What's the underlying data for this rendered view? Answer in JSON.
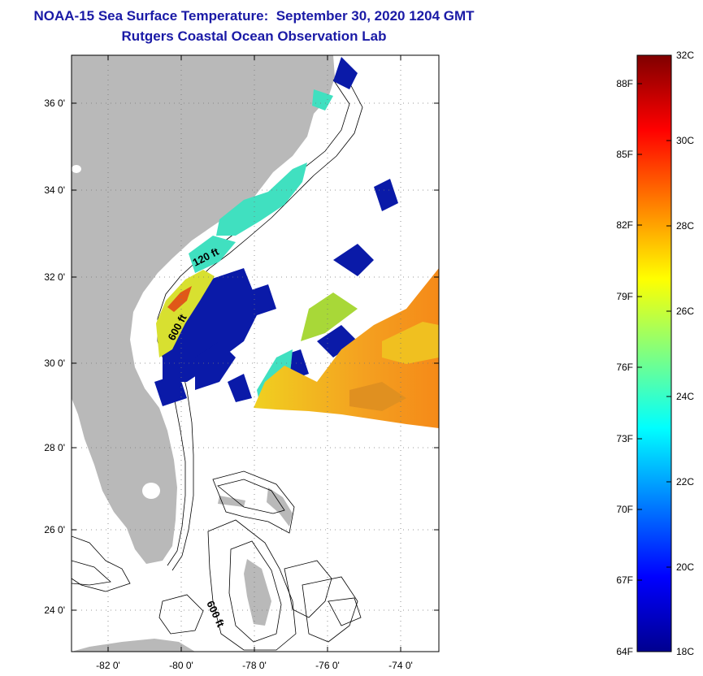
{
  "header": {
    "title": "NOAA-15 Sea Surface Temperature:  September 30, 2020 1204 GMT",
    "subtitle": "Rutgers Coastal Ocean Observation Lab"
  },
  "map": {
    "lat_labels": [
      "36 0'",
      "34 0'",
      "32 0'",
      "30 0'",
      "28 0'",
      "26 0'",
      "24 0'"
    ],
    "lon_labels": [
      "-82 0'",
      "-80 0'",
      "-78 0'",
      "-76 0'",
      "-74 0'"
    ],
    "contour_labels": [
      "120 ft",
      "600 ft",
      "600 ft"
    ],
    "land_color": "#b9b9b9",
    "grid": "dotted"
  },
  "colorbar": {
    "fahrenheit_labels": [
      "88F",
      "85F",
      "82F",
      "79F",
      "76F",
      "73F",
      "70F",
      "67F",
      "64F"
    ],
    "celsius_labels": [
      "32C",
      "30C",
      "28C",
      "26C",
      "24C",
      "22C",
      "20C",
      "18C"
    ],
    "range_celsius": [
      18,
      32
    ],
    "colormap": "jet"
  }
}
